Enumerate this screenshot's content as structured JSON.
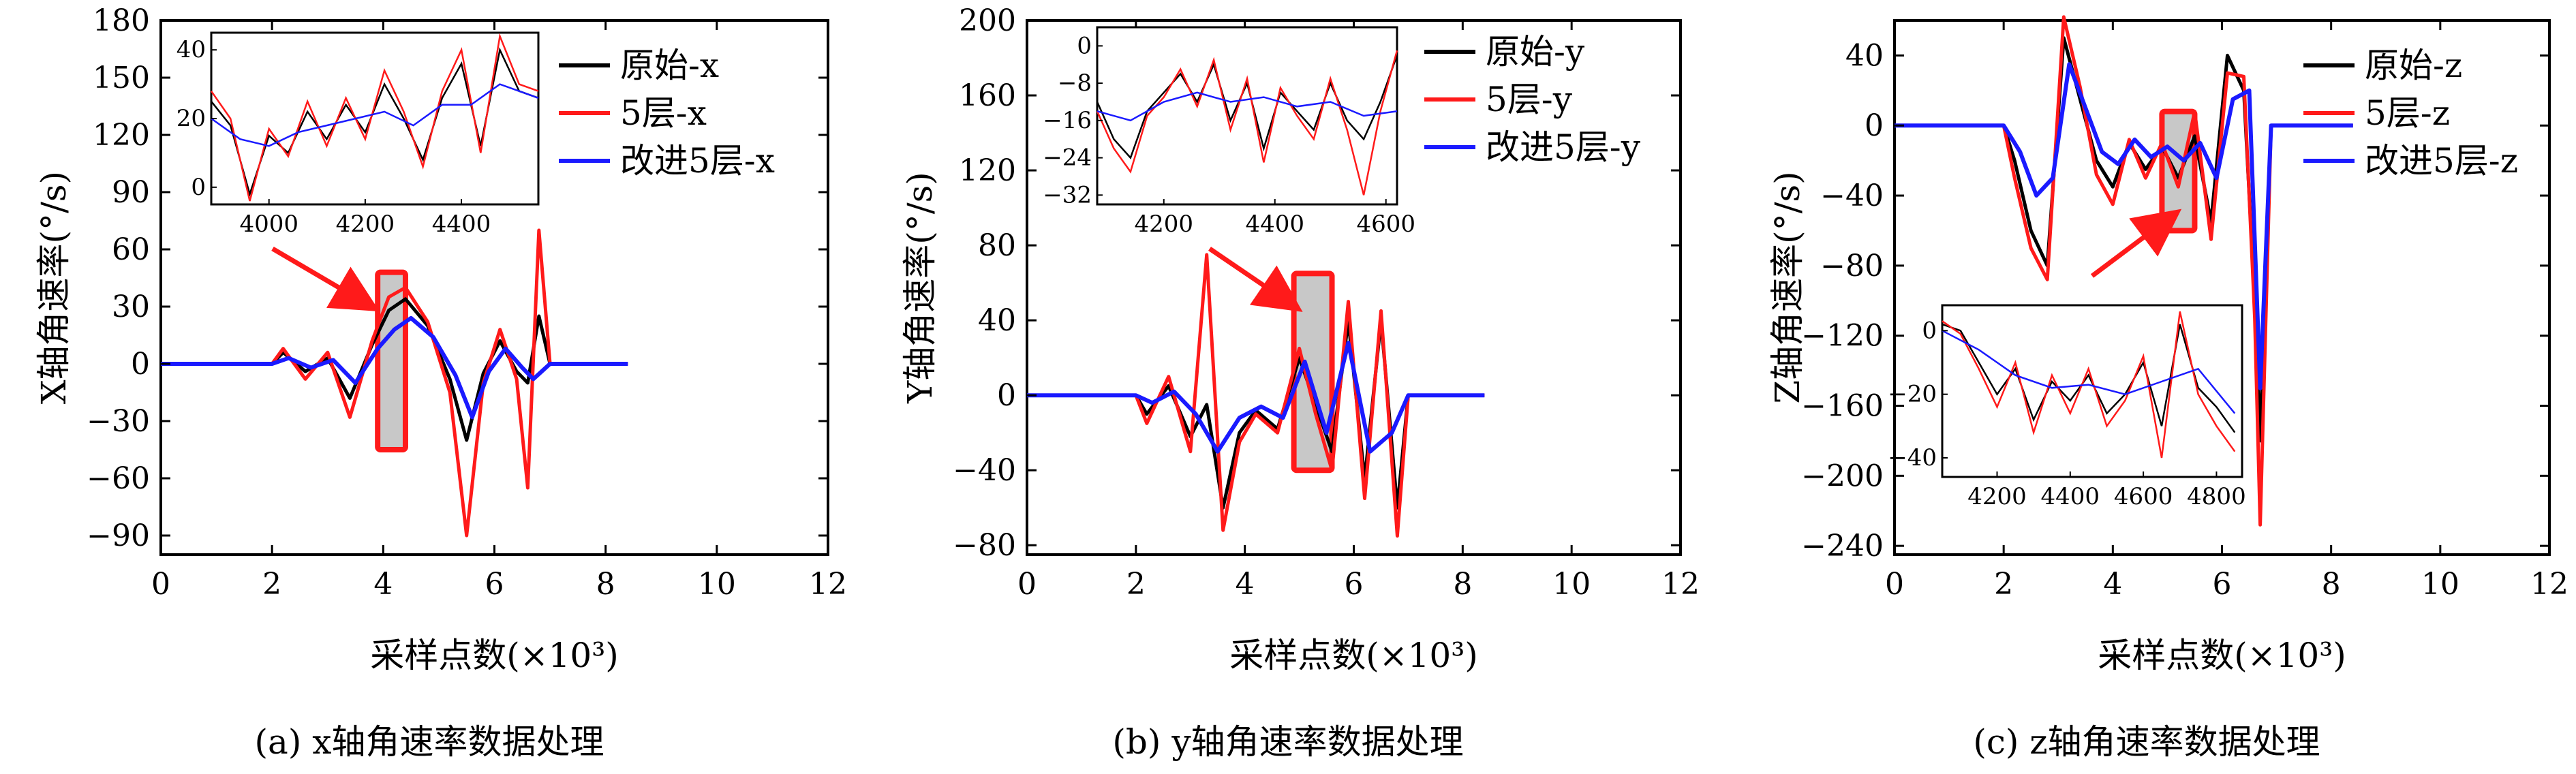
{
  "figure": {
    "captions": [
      "(a) x轴角速率数据处理",
      "(b) y轴角速率数据处理",
      "(c) z轴角速率数据处理"
    ]
  },
  "colors": {
    "raw": "#000000",
    "five_layer": "#ff1a1a",
    "improved": "#1a1aff",
    "highlight": "#c8c8c8",
    "box": "#ff1a1a",
    "arrow": "#ff1a1a"
  },
  "chart_data": [
    {
      "type": "line",
      "xlabel": "采样点数(×10³)",
      "ylabel": "X轴角速率(°/s)",
      "xlim": [
        0,
        12
      ],
      "ylim": [
        -100,
        180
      ],
      "xticks": [
        0,
        2,
        4,
        6,
        8,
        10,
        12
      ],
      "yticks": [
        -90,
        -60,
        -30,
        0,
        30,
        60,
        90,
        120,
        150,
        180
      ],
      "legend": {
        "placement": "top-right",
        "entries": [
          "原始-x",
          "5层-x",
          "改进5层-x"
        ]
      },
      "series": [
        {
          "name": "原始-x",
          "x": [
            0,
            2,
            2.2,
            2.6,
            3,
            3.4,
            3.8,
            4.1,
            4.4,
            4.8,
            5.2,
            5.5,
            5.8,
            6.1,
            6.4,
            6.6,
            6.8,
            7,
            8.4
          ],
          "y": [
            0,
            0,
            6,
            -4,
            3,
            -18,
            10,
            28,
            34,
            20,
            -8,
            -40,
            -5,
            12,
            -4,
            -10,
            25,
            0,
            0
          ]
        },
        {
          "name": "5层-x",
          "x": [
            0,
            2,
            2.2,
            2.6,
            3,
            3.4,
            3.8,
            4.1,
            4.4,
            4.8,
            5.2,
            5.5,
            5.8,
            6.1,
            6.4,
            6.6,
            6.8,
            7,
            8.4
          ],
          "y": [
            0,
            0,
            8,
            -8,
            6,
            -28,
            12,
            35,
            40,
            22,
            -15,
            -90,
            -10,
            18,
            -8,
            -65,
            70,
            0,
            0
          ]
        },
        {
          "name": "改进5层-x",
          "x": [
            0,
            2,
            2.3,
            2.7,
            3.1,
            3.5,
            3.9,
            4.2,
            4.5,
            4.9,
            5.3,
            5.6,
            5.9,
            6.2,
            6.5,
            6.7,
            7,
            8.4
          ],
          "y": [
            0,
            0,
            3,
            -2,
            2,
            -10,
            8,
            18,
            24,
            14,
            -6,
            -28,
            -4,
            8,
            -2,
            -8,
            0,
            0
          ]
        }
      ],
      "highlight": {
        "x": [
          3.9,
          4.4
        ],
        "y": [
          -45,
          48
        ]
      },
      "inset": {
        "placement": "top-left",
        "xlim": [
          3880,
          4560
        ],
        "ylim": [
          -5,
          45
        ],
        "xticks": [
          4000,
          4200,
          4400
        ],
        "yticks": [
          0,
          20,
          40
        ],
        "series": [
          {
            "name": "原始-x",
            "x": [
              3880,
              3920,
              3960,
              4000,
              4040,
              4080,
              4120,
              4160,
              4200,
              4240,
              4280,
              4320,
              4360,
              4400,
              4440,
              4480,
              4520,
              4560
            ],
            "y": [
              25,
              18,
              -2,
              15,
              10,
              22,
              14,
              24,
              16,
              30,
              20,
              8,
              26,
              36,
              12,
              40,
              28,
              26
            ]
          },
          {
            "name": "5层-x",
            "x": [
              3880,
              3920,
              3960,
              4000,
              4040,
              4080,
              4120,
              4160,
              4200,
              4240,
              4280,
              4320,
              4360,
              4400,
              4440,
              4480,
              4520,
              4560
            ],
            "y": [
              28,
              20,
              -4,
              17,
              9,
              25,
              12,
              26,
              14,
              34,
              22,
              6,
              28,
              40,
              10,
              44,
              30,
              28
            ]
          },
          {
            "name": "改进5层-x",
            "x": [
              3880,
              3940,
              4000,
              4060,
              4120,
              4180,
              4240,
              4300,
              4360,
              4420,
              4480,
              4560
            ],
            "y": [
              20,
              14,
              12,
              16,
              18,
              20,
              22,
              18,
              24,
              24,
              30,
              26
            ]
          }
        ]
      }
    },
    {
      "type": "line",
      "xlabel": "采样点数(×10³)",
      "ylabel": "Y轴角速率(°/s)",
      "xlim": [
        0,
        12
      ],
      "ylim": [
        -85,
        200
      ],
      "xticks": [
        0,
        2,
        4,
        6,
        8,
        10,
        12
      ],
      "yticks": [
        -80,
        -40,
        0,
        40,
        80,
        120,
        160,
        200
      ],
      "legend": {
        "placement": "top-right",
        "entries": [
          "原始-y",
          "5层-y",
          "改进5层-y"
        ]
      },
      "series": [
        {
          "name": "原始-y",
          "x": [
            0,
            2,
            2.2,
            2.6,
            3,
            3.3,
            3.6,
            3.9,
            4.2,
            4.6,
            5,
            5.3,
            5.6,
            5.9,
            6.2,
            6.5,
            6.8,
            7,
            8.4
          ],
          "y": [
            0,
            0,
            -10,
            5,
            -22,
            -5,
            -60,
            -20,
            -8,
            -18,
            20,
            -5,
            -30,
            40,
            -45,
            40,
            -60,
            0,
            0
          ]
        },
        {
          "name": "5层-y",
          "x": [
            0,
            2,
            2.2,
            2.6,
            3,
            3.3,
            3.6,
            3.9,
            4.2,
            4.6,
            5,
            5.3,
            5.6,
            5.9,
            6.2,
            6.5,
            6.8,
            7,
            8.4
          ],
          "y": [
            0,
            0,
            -15,
            10,
            -30,
            75,
            -72,
            -25,
            -10,
            -20,
            25,
            -10,
            -40,
            50,
            -55,
            45,
            -75,
            0,
            0
          ]
        },
        {
          "name": "改进5层-y",
          "x": [
            0,
            2,
            2.3,
            2.7,
            3.1,
            3.5,
            3.9,
            4.3,
            4.7,
            5.1,
            5.5,
            5.9,
            6.3,
            6.7,
            7,
            8.4
          ],
          "y": [
            0,
            0,
            -4,
            2,
            -10,
            -30,
            -12,
            -6,
            -12,
            18,
            -20,
            28,
            -30,
            -20,
            0,
            0
          ]
        }
      ],
      "highlight": {
        "x": [
          4.9,
          5.6
        ],
        "y": [
          -40,
          65
        ]
      },
      "inset": {
        "placement": "top-left",
        "xlim": [
          4080,
          4620
        ],
        "ylim": [
          -34,
          4
        ],
        "xticks": [
          4200,
          4400,
          4600
        ],
        "yticks": [
          0,
          -8,
          -16,
          -24,
          -32
        ],
        "series": [
          {
            "name": "原始-y",
            "x": [
              4080,
              4110,
              4140,
              4170,
              4200,
              4230,
              4260,
              4290,
              4320,
              4350,
              4380,
              4410,
              4440,
              4470,
              4500,
              4530,
              4560,
              4590,
              4620
            ],
            "y": [
              -12,
              -20,
              -24,
              -14,
              -10,
              -6,
              -12,
              -4,
              -16,
              -8,
              -22,
              -10,
              -14,
              -18,
              -8,
              -16,
              -20,
              -12,
              -2
            ]
          },
          {
            "name": "5层-y",
            "x": [
              4080,
              4110,
              4140,
              4170,
              4200,
              4230,
              4260,
              4290,
              4320,
              4350,
              4380,
              4410,
              4440,
              4470,
              4500,
              4530,
              4560,
              4590,
              4620
            ],
            "y": [
              -14,
              -22,
              -27,
              -15,
              -11,
              -5,
              -13,
              -3,
              -18,
              -7,
              -25,
              -9,
              -15,
              -20,
              -7,
              -18,
              -32,
              -14,
              -1
            ]
          },
          {
            "name": "改进5层-y",
            "x": [
              4080,
              4140,
              4200,
              4260,
              4320,
              4380,
              4440,
              4500,
              4560,
              4620
            ],
            "y": [
              -14,
              -16,
              -12,
              -10,
              -12,
              -11,
              -13,
              -12,
              -15,
              -14
            ]
          }
        ]
      }
    },
    {
      "type": "line",
      "xlabel": "采样点数(×10³)",
      "ylabel": "Z轴角速率(°/s)",
      "xlim": [
        0,
        12
      ],
      "ylim": [
        -245,
        60
      ],
      "xticks": [
        0,
        2,
        4,
        6,
        8,
        10,
        12
      ],
      "yticks": [
        -240,
        -200,
        -160,
        -120,
        -80,
        -40,
        0,
        40
      ],
      "legend": {
        "placement": "top-right",
        "entries": [
          "原始-z",
          "5层-z",
          "改进5层-z"
        ]
      },
      "series": [
        {
          "name": "原始-z",
          "x": [
            0,
            2,
            2.2,
            2.5,
            2.8,
            3.1,
            3.4,
            3.7,
            4,
            4.3,
            4.6,
            4.9,
            5.2,
            5.5,
            5.8,
            6.1,
            6.4,
            6.6,
            6.7,
            6.9,
            8.4
          ],
          "y": [
            0,
            0,
            -20,
            -60,
            -80,
            50,
            15,
            -20,
            -35,
            -10,
            -25,
            -12,
            -30,
            -6,
            -55,
            40,
            20,
            -100,
            -180,
            0,
            0
          ]
        },
        {
          "name": "5层-z",
          "x": [
            0,
            2,
            2.2,
            2.5,
            2.8,
            3.1,
            3.4,
            3.7,
            4,
            4.3,
            4.6,
            4.9,
            5.2,
            5.5,
            5.8,
            6.1,
            6.4,
            6.6,
            6.7,
            6.9,
            8.4
          ],
          "y": [
            0,
            0,
            -30,
            -70,
            -88,
            62,
            22,
            -28,
            -45,
            -8,
            -30,
            -10,
            -35,
            8,
            -65,
            30,
            28,
            -110,
            -228,
            0,
            0
          ]
        },
        {
          "name": "改进5层-z",
          "x": [
            0,
            2,
            2.3,
            2.6,
            2.9,
            3.2,
            3.5,
            3.8,
            4.1,
            4.4,
            4.7,
            5,
            5.3,
            5.6,
            5.9,
            6.2,
            6.5,
            6.7,
            6.9,
            8.4
          ],
          "y": [
            0,
            0,
            -15,
            -40,
            -30,
            35,
            10,
            -15,
            -22,
            -8,
            -18,
            -12,
            -20,
            -10,
            -30,
            15,
            20,
            -150,
            0,
            0
          ]
        }
      ],
      "highlight": {
        "x": [
          4.9,
          5.5
        ],
        "y": [
          -60,
          8
        ]
      },
      "inset": {
        "placement": "bottom-left",
        "xlim": [
          4050,
          4870
        ],
        "ylim": [
          -46,
          8
        ],
        "xticks": [
          4200,
          4400,
          4600,
          4800
        ],
        "yticks": [
          0,
          -20,
          -40
        ],
        "series": [
          {
            "name": "原始-z",
            "x": [
              4050,
              4100,
              4150,
              4200,
              4250,
              4300,
              4350,
              4400,
              4450,
              4500,
              4550,
              4600,
              4650,
              4700,
              4750,
              4800,
              4850
            ],
            "y": [
              2,
              0,
              -10,
              -20,
              -12,
              -28,
              -16,
              -22,
              -14,
              -26,
              -20,
              -10,
              -30,
              2,
              -18,
              -24,
              -32
            ]
          },
          {
            "name": "5层-z",
            "x": [
              4050,
              4100,
              4150,
              4200,
              4250,
              4300,
              4350,
              4400,
              4450,
              4500,
              4550,
              4600,
              4650,
              4700,
              4750,
              4800,
              4850
            ],
            "y": [
              3,
              -1,
              -12,
              -24,
              -10,
              -32,
              -14,
              -26,
              -12,
              -30,
              -22,
              -8,
              -40,
              6,
              -20,
              -30,
              -38
            ]
          },
          {
            "name": "改进5层-z",
            "x": [
              4050,
              4150,
              4250,
              4350,
              4450,
              4550,
              4650,
              4750,
              4850
            ],
            "y": [
              0,
              -6,
              -14,
              -18,
              -17,
              -20,
              -16,
              -12,
              -26
            ]
          }
        ]
      }
    }
  ]
}
